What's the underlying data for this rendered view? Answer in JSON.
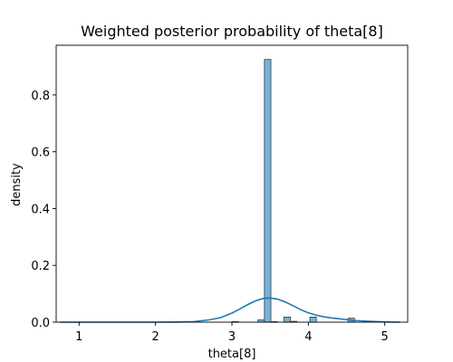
{
  "chart_data": {
    "type": "bar",
    "title": "Weighted posterior probability of theta[8]",
    "xlabel": "theta[8]",
    "ylabel": "density",
    "xlim": [
      0.7,
      5.3
    ],
    "ylim": [
      0,
      0.975
    ],
    "xticks": [
      1,
      2,
      3,
      4,
      5
    ],
    "yticks": [
      0.0,
      0.2,
      0.4,
      0.6,
      0.8
    ],
    "grid": false,
    "legend": "none",
    "histogram": {
      "bin_width": 0.085,
      "bins": [
        {
          "x0": 3.0,
          "x1": 3.085,
          "value": 0.002
        },
        {
          "x0": 3.34,
          "x1": 3.425,
          "value": 0.008
        },
        {
          "x0": 3.425,
          "x1": 3.51,
          "value": 0.925
        },
        {
          "x0": 3.51,
          "x1": 3.595,
          "value": 0.002
        },
        {
          "x0": 3.68,
          "x1": 3.765,
          "value": 0.018
        },
        {
          "x0": 3.765,
          "x1": 3.85,
          "value": 0.003
        },
        {
          "x0": 4.02,
          "x1": 4.105,
          "value": 0.018
        },
        {
          "x0": 4.52,
          "x1": 4.605,
          "value": 0.014
        }
      ]
    },
    "kde": {
      "x": [
        0.75,
        1.0,
        1.5,
        2.0,
        2.3,
        2.5,
        2.7,
        2.85,
        3.0,
        3.1,
        3.2,
        3.3,
        3.4,
        3.5,
        3.6,
        3.7,
        3.8,
        3.9,
        4.0,
        4.1,
        4.2,
        4.3,
        4.4,
        4.5,
        4.6,
        4.8,
        5.0,
        5.2
      ],
      "y": [
        0.0,
        0.0,
        0.0,
        0.0,
        0.0005,
        0.002,
        0.008,
        0.016,
        0.032,
        0.046,
        0.061,
        0.074,
        0.083,
        0.085,
        0.081,
        0.071,
        0.058,
        0.044,
        0.033,
        0.025,
        0.019,
        0.015,
        0.012,
        0.009,
        0.006,
        0.003,
        0.001,
        0.0
      ]
    },
    "colors": {
      "bar_fill": "#7bb1d7",
      "bar_edge": "#2c3e50",
      "kde_line": "#1f77b4"
    }
  }
}
